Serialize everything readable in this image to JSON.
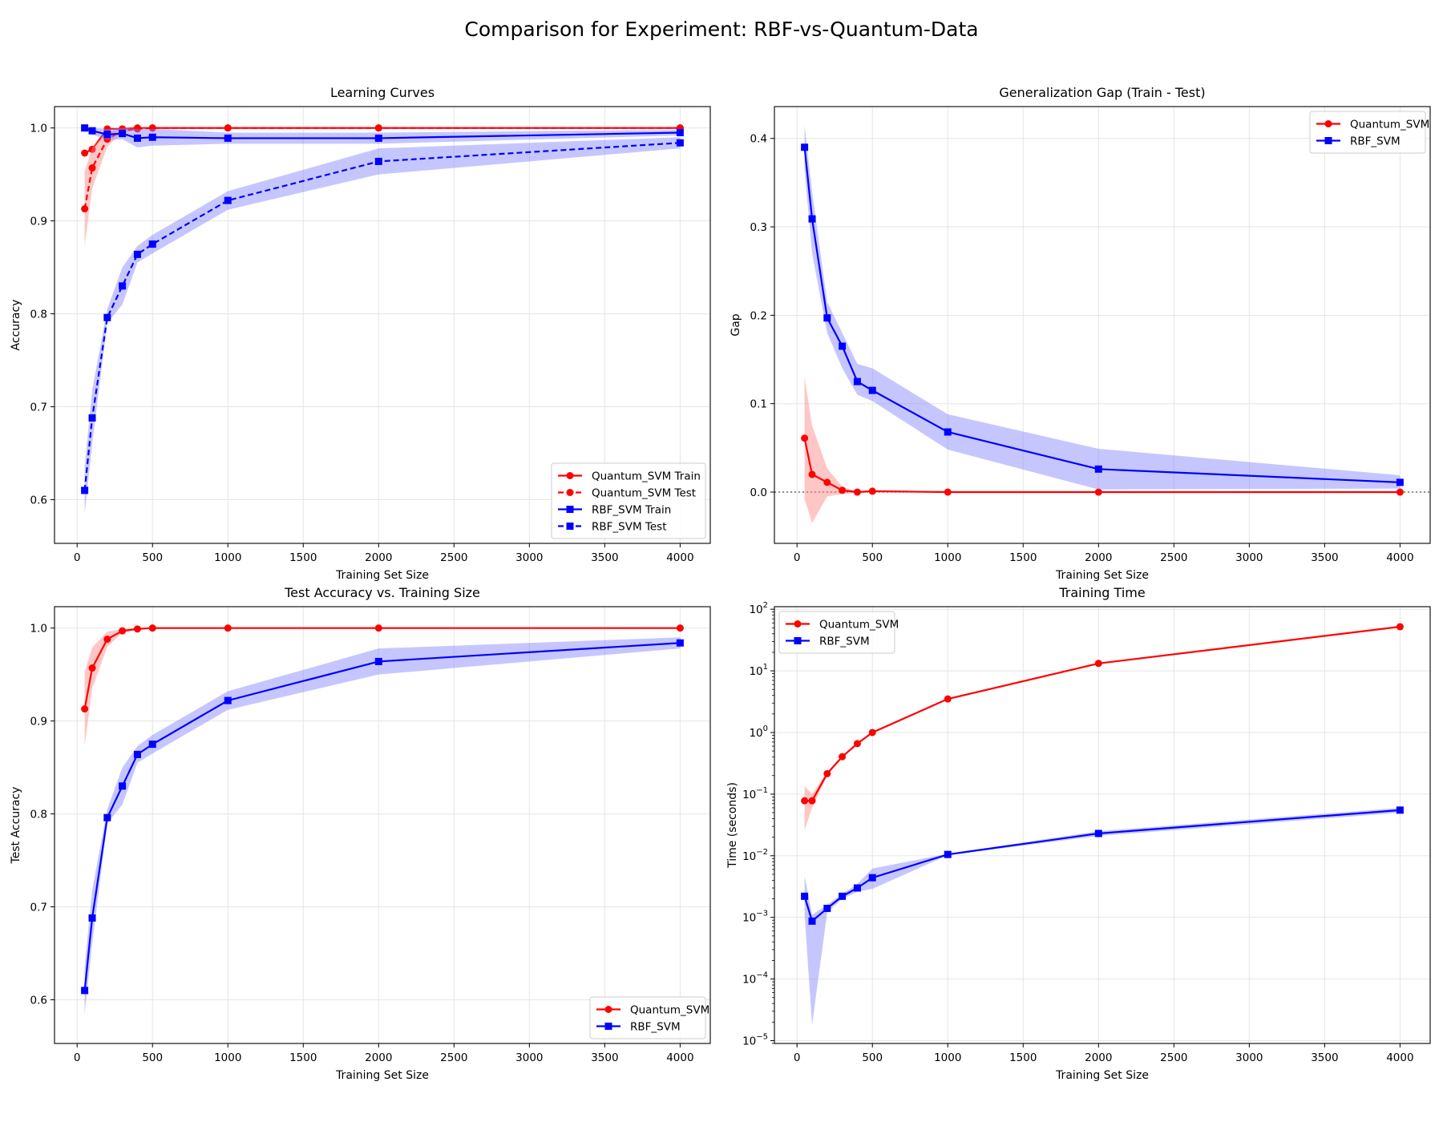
{
  "figure": {
    "suptitle": "Comparison for Experiment: RBF-vs-Quantum-Data",
    "colors": {
      "quantum": "#ff0000",
      "rbf": "#0000ff",
      "quantum_band": "#ff8080",
      "rbf_band": "#8080ff",
      "grid": "#e5e5e5"
    }
  },
  "chart_data": [
    {
      "id": "learning",
      "type": "line",
      "title": "Learning Curves",
      "xlabel": "Training Set Size",
      "ylabel": "Accuracy",
      "xlim": [
        -150,
        4200
      ],
      "ylim": [
        0.553,
        1.023
      ],
      "xticks": [
        0,
        500,
        1000,
        1500,
        2000,
        2500,
        3000,
        3500,
        4000
      ],
      "yticks": [
        0.6,
        0.7,
        0.8,
        0.9,
        1.0
      ],
      "ytick_labels": [
        "0.6",
        "0.7",
        "0.8",
        "0.9",
        "1.0"
      ],
      "yscale": "linear",
      "grid": true,
      "legend": "lower right",
      "x": [
        50,
        100,
        200,
        300,
        400,
        500,
        1000,
        2000,
        4000
      ],
      "series": [
        {
          "name": "Quantum_SVM Train",
          "color": "quantum",
          "style": "solid",
          "marker": "circle",
          "values": [
            0.973,
            0.977,
            0.999,
            0.999,
            1.0,
            1.0,
            1.0,
            1.0,
            1.0
          ],
          "lower": [
            0.97,
            0.973,
            0.998,
            0.999,
            1.0,
            1.0,
            1.0,
            1.0,
            1.0
          ],
          "upper": [
            0.976,
            0.981,
            1.0,
            1.0,
            1.0,
            1.0,
            1.0,
            1.0,
            1.0
          ]
        },
        {
          "name": "Quantum_SVM Test",
          "color": "quantum",
          "style": "dashed",
          "marker": "circle",
          "values": [
            0.913,
            0.957,
            0.988,
            0.997,
            0.999,
            1.0,
            1.0,
            1.0,
            1.0
          ],
          "lower": [
            0.873,
            0.935,
            0.98,
            0.995,
            0.998,
            1.0,
            1.0,
            1.0,
            1.0
          ],
          "upper": [
            0.953,
            0.979,
            0.996,
            0.999,
            1.0,
            1.0,
            1.0,
            1.0,
            1.0
          ],
          "band": true
        },
        {
          "name": "RBF_SVM Train",
          "color": "rbf",
          "style": "solid",
          "marker": "square",
          "values": [
            1.0,
            0.997,
            0.993,
            0.994,
            0.989,
            0.99,
            0.989,
            0.989,
            0.995
          ],
          "lower": [
            1.0,
            0.993,
            0.987,
            0.988,
            0.979,
            0.981,
            0.983,
            0.983,
            0.992
          ],
          "upper": [
            1.0,
            1.0,
            0.999,
            1.0,
            0.999,
            0.999,
            0.995,
            0.995,
            0.998
          ],
          "band": true
        },
        {
          "name": "RBF_SVM Test",
          "color": "rbf",
          "style": "dashed",
          "marker": "square",
          "values": [
            0.61,
            0.688,
            0.796,
            0.83,
            0.864,
            0.875,
            0.922,
            0.964,
            0.984
          ],
          "lower": [
            0.585,
            0.66,
            0.79,
            0.81,
            0.855,
            0.865,
            0.912,
            0.95,
            0.978
          ],
          "upper": [
            0.635,
            0.718,
            0.805,
            0.85,
            0.873,
            0.885,
            0.932,
            0.978,
            0.99
          ],
          "band": true
        }
      ]
    },
    {
      "id": "gap",
      "type": "line",
      "title": "Generalization Gap (Train - Test)",
      "xlabel": "Training Set Size",
      "ylabel": "Gap",
      "xlim": [
        -150,
        4200
      ],
      "ylim": [
        -0.058,
        0.436
      ],
      "xticks": [
        0,
        500,
        1000,
        1500,
        2000,
        2500,
        3000,
        3500,
        4000
      ],
      "yticks": [
        0.0,
        0.1,
        0.2,
        0.3,
        0.4
      ],
      "ytick_labels": [
        "0.0",
        "0.1",
        "0.2",
        "0.3",
        "0.4"
      ],
      "yscale": "linear",
      "grid": true,
      "zero_line": true,
      "legend": "upper right",
      "x": [
        50,
        100,
        200,
        300,
        400,
        500,
        1000,
        2000,
        4000
      ],
      "series": [
        {
          "name": "Quantum_SVM",
          "color": "quantum",
          "style": "solid",
          "marker": "circle",
          "values": [
            0.061,
            0.02,
            0.011,
            0.002,
            0.0,
            0.001,
            0.0,
            0.0,
            0.0
          ],
          "lower": [
            -0.008,
            -0.035,
            -0.005,
            -0.002,
            -0.001,
            0.0,
            0.0,
            0.0,
            0.0
          ],
          "upper": [
            0.13,
            0.075,
            0.027,
            0.006,
            0.001,
            0.002,
            0.0,
            0.0,
            0.0
          ],
          "band": true
        },
        {
          "name": "RBF_SVM",
          "color": "rbf",
          "style": "solid",
          "marker": "square",
          "values": [
            0.39,
            0.309,
            0.197,
            0.165,
            0.125,
            0.115,
            0.068,
            0.026,
            0.011
          ],
          "lower": [
            0.365,
            0.27,
            0.18,
            0.14,
            0.11,
            0.103,
            0.048,
            0.003,
            0.004
          ],
          "upper": [
            0.415,
            0.34,
            0.215,
            0.18,
            0.145,
            0.14,
            0.088,
            0.049,
            0.019
          ],
          "band": true
        }
      ]
    },
    {
      "id": "test",
      "type": "line",
      "title": "Test Accuracy vs. Training Size",
      "xlabel": "Training Set Size",
      "ylabel": "Test Accuracy",
      "xlim": [
        -150,
        4200
      ],
      "ylim": [
        0.553,
        1.023
      ],
      "xticks": [
        0,
        500,
        1000,
        1500,
        2000,
        2500,
        3000,
        3500,
        4000
      ],
      "yticks": [
        0.6,
        0.7,
        0.8,
        0.9,
        1.0
      ],
      "ytick_labels": [
        "0.6",
        "0.7",
        "0.8",
        "0.9",
        "1.0"
      ],
      "yscale": "linear",
      "grid": true,
      "legend": "lower right",
      "x": [
        50,
        100,
        200,
        300,
        400,
        500,
        1000,
        2000,
        4000
      ],
      "series": [
        {
          "name": "Quantum_SVM",
          "color": "quantum",
          "style": "solid",
          "marker": "circle",
          "values": [
            0.913,
            0.957,
            0.988,
            0.997,
            0.999,
            1.0,
            1.0,
            1.0,
            1.0
          ],
          "lower": [
            0.873,
            0.935,
            0.98,
            0.995,
            0.998,
            1.0,
            1.0,
            1.0,
            1.0
          ],
          "upper": [
            0.953,
            0.979,
            0.996,
            0.999,
            1.0,
            1.0,
            1.0,
            1.0,
            1.0
          ],
          "band": true
        },
        {
          "name": "RBF_SVM",
          "color": "rbf",
          "style": "solid",
          "marker": "square",
          "values": [
            0.61,
            0.688,
            0.796,
            0.83,
            0.864,
            0.875,
            0.922,
            0.964,
            0.984
          ],
          "lower": [
            0.585,
            0.66,
            0.79,
            0.81,
            0.855,
            0.865,
            0.912,
            0.95,
            0.978
          ],
          "upper": [
            0.635,
            0.718,
            0.805,
            0.85,
            0.873,
            0.885,
            0.932,
            0.978,
            0.99
          ],
          "band": true
        }
      ]
    },
    {
      "id": "time",
      "type": "line",
      "title": "Training Time",
      "xlabel": "Training Set Size",
      "ylabel": "Time (seconds)",
      "xlim": [
        -150,
        4200
      ],
      "ylim": [
        9e-06,
        110
      ],
      "xticks": [
        0,
        500,
        1000,
        1500,
        2000,
        2500,
        3000,
        3500,
        4000
      ],
      "yticks": [
        1e-05,
        0.0001,
        0.001,
        0.01,
        0.1,
        1,
        10,
        100
      ],
      "ytick_labels": [
        [
          "10",
          "−5"
        ],
        [
          "10",
          "−4"
        ],
        [
          "10",
          "−3"
        ],
        [
          "10",
          "−2"
        ],
        [
          "10",
          "−1"
        ],
        [
          "10",
          "0"
        ],
        [
          "10",
          "1"
        ],
        [
          "10",
          "2"
        ]
      ],
      "yscale": "log",
      "grid": true,
      "legend": "upper left",
      "x": [
        50,
        100,
        200,
        300,
        400,
        500,
        1000,
        2000,
        4000
      ],
      "series": [
        {
          "name": "Quantum_SVM",
          "color": "quantum",
          "style": "solid",
          "marker": "circle",
          "values": [
            0.078,
            0.078,
            0.215,
            0.405,
            0.66,
            1.0,
            3.5,
            13.2,
            52.0
          ],
          "lower": [
            0.026,
            0.06,
            0.2,
            0.39,
            0.64,
            0.97,
            3.4,
            12.8,
            51.0
          ],
          "upper": [
            0.135,
            0.1,
            0.23,
            0.42,
            0.68,
            1.03,
            3.6,
            13.6,
            53.0
          ],
          "band": true
        },
        {
          "name": "RBF_SVM",
          "color": "rbf",
          "style": "solid",
          "marker": "square",
          "values": [
            0.0022,
            0.00087,
            0.0014,
            0.0022,
            0.003,
            0.0044,
            0.0105,
            0.023,
            0.055
          ],
          "lower": [
            0.0011,
            1.8e-05,
            0.0012,
            0.002,
            0.0026,
            0.0029,
            0.0102,
            0.021,
            0.05
          ],
          "upper": [
            0.0047,
            0.0011,
            0.0016,
            0.0024,
            0.0035,
            0.0062,
            0.0108,
            0.025,
            0.06
          ],
          "band": true
        }
      ]
    }
  ]
}
